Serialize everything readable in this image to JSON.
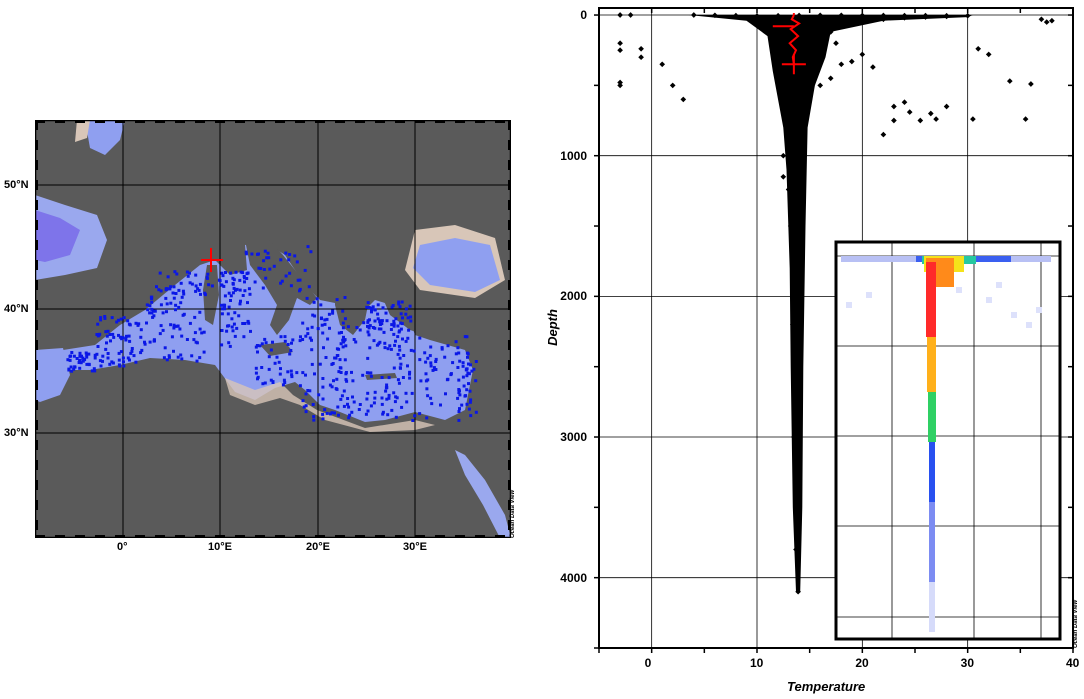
{
  "map": {
    "lat_labels": [
      "50°N",
      "40°N",
      "30°N"
    ],
    "lon_labels": [
      "0°",
      "10°E",
      "20°E",
      "30°E"
    ],
    "credit": "Ocean Data View",
    "colors": {
      "land": "#5a5a5a",
      "sea": "#8f9ff0",
      "station": "#0a17e6",
      "marker": "#ff0000",
      "coast_sand": "#d8c6b8"
    }
  },
  "chart_data": [
    {
      "type": "scatter",
      "title": "",
      "xlabel": "Temperature",
      "ylabel": "Depth",
      "xlim": [
        -5,
        40
      ],
      "ylim": [
        4500,
        -50
      ],
      "y_inverted": true,
      "grid": true,
      "x_ticks": [
        0,
        10,
        20,
        30,
        40
      ],
      "y_ticks": [
        0,
        1000,
        2000,
        3000,
        4000
      ],
      "series": [
        {
          "color": "#000000",
          "points": [
            [
              4,
              0
            ],
            [
              6,
              2
            ],
            [
              8,
              4
            ],
            [
              10,
              6
            ],
            [
              12,
              5
            ],
            [
              14,
              3
            ],
            [
              16,
              2
            ],
            [
              18,
              2
            ],
            [
              20,
              3
            ],
            [
              22,
              3
            ],
            [
              24,
              4
            ],
            [
              26,
              4
            ],
            [
              28,
              5
            ],
            [
              30,
              5
            ],
            [
              12,
              50
            ],
            [
              13,
              100
            ],
            [
              14,
              150
            ],
            [
              15,
              200
            ],
            [
              16,
              180
            ],
            [
              17,
              120
            ],
            [
              18,
              80
            ],
            [
              19,
              60
            ],
            [
              20,
              40
            ],
            [
              22,
              30
            ],
            [
              24,
              20
            ],
            [
              26,
              15
            ],
            [
              28,
              10
            ],
            [
              11,
              120
            ],
            [
              11.5,
              200
            ],
            [
              12,
              300
            ],
            [
              12.5,
              350
            ],
            [
              13,
              400
            ],
            [
              13.5,
              500
            ],
            [
              14,
              600
            ],
            [
              14.5,
              700
            ],
            [
              15,
              600
            ],
            [
              16,
              500
            ],
            [
              17,
              450
            ],
            [
              13,
              800
            ],
            [
              13.5,
              1000
            ],
            [
              14,
              1200
            ],
            [
              13.2,
              1500
            ],
            [
              13.6,
              1800
            ],
            [
              13.4,
              2200
            ],
            [
              13.8,
              2600
            ],
            [
              13.5,
              3000
            ],
            [
              13.9,
              3400
            ],
            [
              13.7,
              3800
            ],
            [
              13.9,
              4100
            ],
            [
              -3,
              0
            ],
            [
              -2,
              0
            ],
            [
              -3,
              200
            ],
            [
              -3,
              250
            ],
            [
              -3,
              480
            ],
            [
              -3,
              500
            ],
            [
              -1,
              240
            ],
            [
              -1,
              300
            ],
            [
              1,
              350
            ],
            [
              2,
              500
            ],
            [
              3,
              600
            ],
            [
              12.5,
              1000
            ],
            [
              12.5,
              1150
            ],
            [
              13,
              1240
            ],
            [
              17.5,
              200
            ],
            [
              18,
              350
            ],
            [
              19,
              330
            ],
            [
              20,
              280
            ],
            [
              21,
              370
            ],
            [
              22,
              850
            ],
            [
              23,
              750
            ],
            [
              23,
              650
            ],
            [
              24,
              620
            ],
            [
              24.5,
              690
            ],
            [
              25.5,
              750
            ],
            [
              26.5,
              700
            ],
            [
              27,
              740
            ],
            [
              28,
              650
            ],
            [
              30.5,
              740
            ],
            [
              31,
              240
            ],
            [
              32,
              280
            ],
            [
              34,
              470
            ],
            [
              36,
              490
            ],
            [
              35.5,
              740
            ],
            [
              37,
              30
            ],
            [
              37.5,
              50
            ],
            [
              38,
              40
            ]
          ]
        },
        {
          "color": "#ff0000",
          "points": [
            [
              13.5,
              0
            ],
            [
              13.3,
              30
            ],
            [
              14.0,
              60
            ],
            [
              13.2,
              100
            ],
            [
              13.9,
              150
            ],
            [
              13.1,
              200
            ],
            [
              13.7,
              250
            ],
            [
              13.4,
              300
            ],
            [
              13.5,
              350
            ]
          ]
        }
      ]
    }
  ]
}
